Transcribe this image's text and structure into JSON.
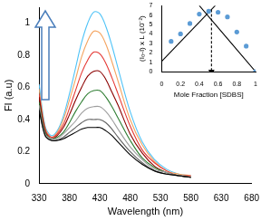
{
  "chart_data": [
    {
      "type": "line",
      "x_label": "Wavelength (nm)",
      "y_label": "FI (a.u)",
      "x": [
        330,
        340,
        350,
        360,
        370,
        380,
        390,
        400,
        410,
        420,
        430,
        440,
        450,
        460,
        480,
        500,
        520,
        540,
        560,
        580
      ],
      "series": [
        {
          "color": "#000000",
          "values": [
            0.46,
            0.3,
            0.27,
            0.27,
            0.28,
            0.3,
            0.32,
            0.34,
            0.35,
            0.35,
            0.35,
            0.33,
            0.3,
            0.26,
            0.18,
            0.12,
            0.08,
            0.06,
            0.05,
            0.04
          ]
        },
        {
          "color": "#606060",
          "values": [
            0.47,
            0.3,
            0.27,
            0.27,
            0.29,
            0.32,
            0.35,
            0.38,
            0.4,
            0.4,
            0.4,
            0.38,
            0.34,
            0.29,
            0.2,
            0.13,
            0.08,
            0.06,
            0.05,
            0.04
          ]
        },
        {
          "color": "#9e9e9e",
          "values": [
            0.49,
            0.31,
            0.28,
            0.28,
            0.31,
            0.35,
            0.39,
            0.44,
            0.47,
            0.48,
            0.48,
            0.45,
            0.4,
            0.34,
            0.23,
            0.15,
            0.09,
            0.07,
            0.05,
            0.04
          ]
        },
        {
          "color": "#2e7d32",
          "values": [
            0.51,
            0.32,
            0.28,
            0.29,
            0.32,
            0.38,
            0.45,
            0.51,
            0.56,
            0.58,
            0.58,
            0.54,
            0.48,
            0.41,
            0.27,
            0.16,
            0.1,
            0.07,
            0.05,
            0.04
          ]
        },
        {
          "color": "#8b0000",
          "values": [
            0.54,
            0.33,
            0.28,
            0.3,
            0.35,
            0.43,
            0.52,
            0.6,
            0.67,
            0.7,
            0.7,
            0.65,
            0.57,
            0.49,
            0.31,
            0.19,
            0.11,
            0.07,
            0.05,
            0.04
          ]
        },
        {
          "color": "#e53935",
          "values": [
            0.56,
            0.34,
            0.29,
            0.31,
            0.37,
            0.47,
            0.58,
            0.69,
            0.77,
            0.82,
            0.81,
            0.75,
            0.66,
            0.56,
            0.36,
            0.21,
            0.13,
            0.08,
            0.05,
            0.05
          ]
        },
        {
          "color": "#f4a460",
          "values": [
            0.59,
            0.35,
            0.29,
            0.32,
            0.4,
            0.52,
            0.65,
            0.79,
            0.89,
            0.95,
            0.94,
            0.87,
            0.76,
            0.64,
            0.4,
            0.24,
            0.14,
            0.08,
            0.06,
            0.05
          ]
        },
        {
          "color": "#4fc3f7",
          "values": [
            0.62,
            0.36,
            0.3,
            0.33,
            0.42,
            0.56,
            0.72,
            0.88,
            1.0,
            1.07,
            1.06,
            0.98,
            0.86,
            0.72,
            0.45,
            0.26,
            0.15,
            0.09,
            0.06,
            0.05
          ]
        }
      ],
      "marker": "none",
      "xlim": [
        330,
        680
      ],
      "xticks": [
        330,
        380,
        430,
        480,
        530,
        580,
        630,
        680
      ],
      "ylim": [
        0,
        1.1
      ],
      "yticks": [
        0,
        0.2,
        0.4,
        0.6,
        0.8,
        1
      ],
      "grid": false
    },
    {
      "type": "scatter",
      "x_label": "Mole Fraction [SDBS]",
      "y_label": "(I₀-I) x L (10⁻²)",
      "series": [
        {
          "type": "scatter",
          "color": "#5b9bd5",
          "marker": "circle",
          "x": [
            0.1,
            0.2,
            0.3,
            0.4,
            0.5,
            0.6,
            0.7,
            0.8,
            0.9,
            1
          ],
          "values": [
            3.2,
            4.0,
            5.1,
            6.1,
            6.4,
            6.3,
            5.8,
            4.2,
            2.7,
            0
          ]
        },
        {
          "type": "line",
          "color": "#000000",
          "marker": "none",
          "x": [
            0,
            0.57
          ],
          "values": [
            1.1,
            7
          ]
        },
        {
          "type": "line",
          "color": "#000000",
          "marker": "none",
          "x": [
            0.4,
            1
          ],
          "values": [
            7,
            0
          ]
        },
        {
          "type": "line",
          "color": "#000000",
          "marker": "arrow",
          "line_style": "dashed",
          "x": [
            0.53,
            0.53
          ],
          "values": [
            6.6,
            0
          ]
        }
      ],
      "xlim": [
        0,
        1
      ],
      "xticks": [
        0,
        0.2,
        0.4,
        0.6,
        0.8,
        1
      ],
      "ylim": [
        0,
        7
      ],
      "yticks": [
        0,
        1,
        2,
        3,
        4,
        5,
        6,
        7
      ],
      "grid": false
    }
  ]
}
